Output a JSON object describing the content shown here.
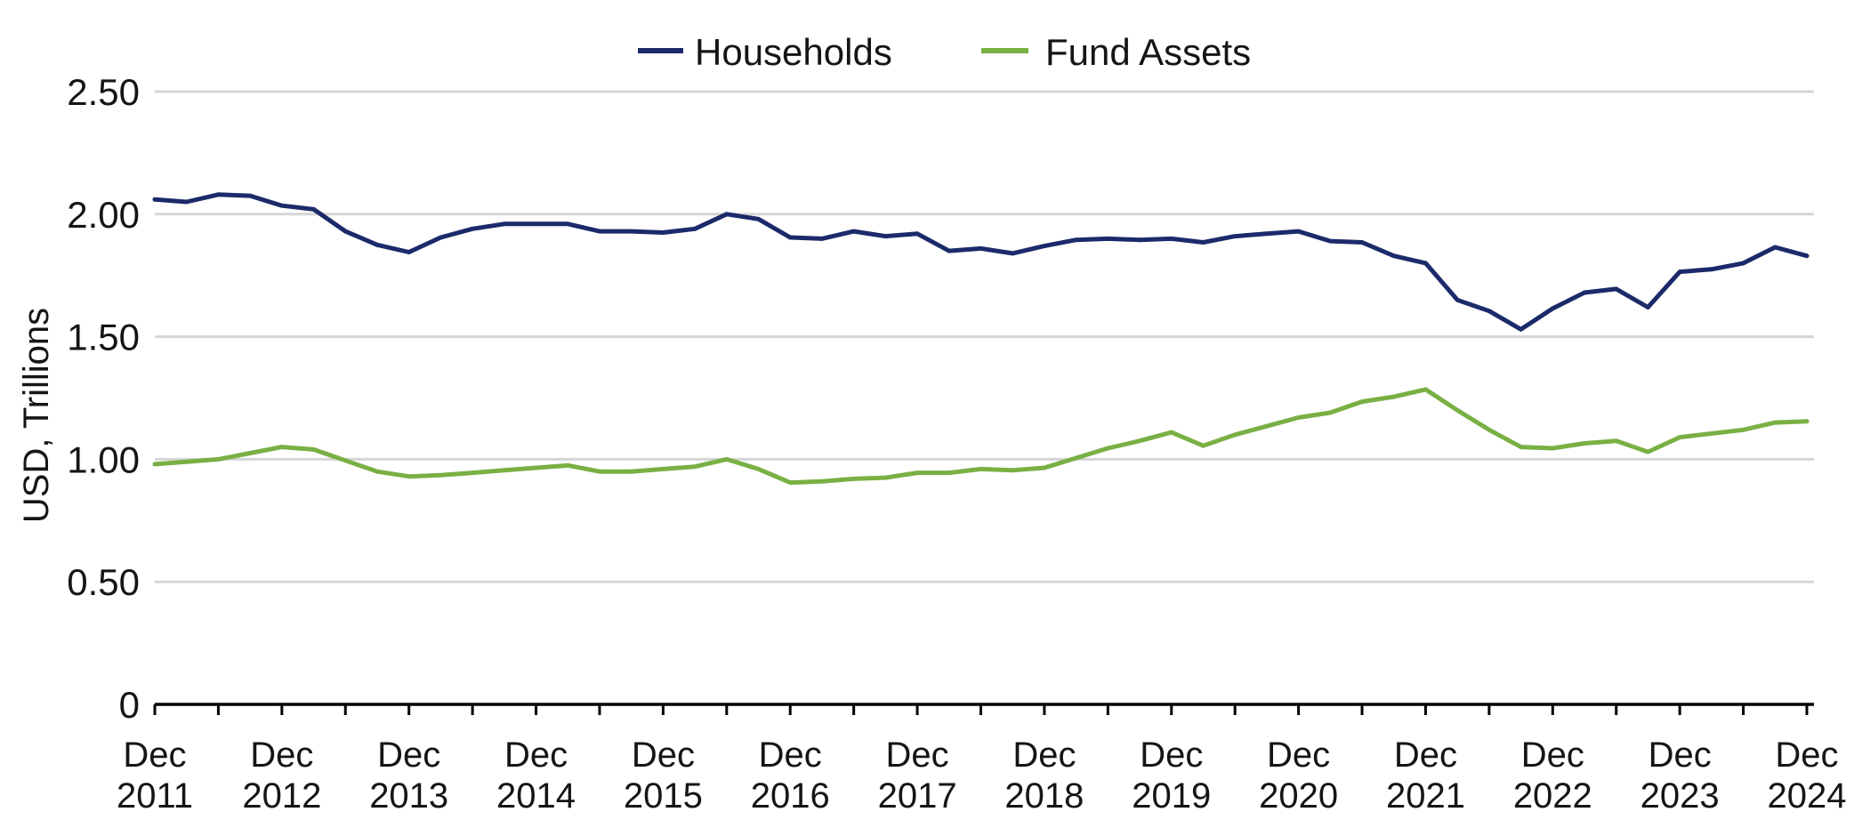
{
  "chart_data": {
    "type": "line",
    "ylabel": "USD, Trillions",
    "ylim": [
      0,
      2.5
    ],
    "yticks": [
      0,
      0.5,
      1.0,
      1.5,
      2.0,
      2.5
    ],
    "ytick_labels": [
      "0",
      "0.50",
      "1.00",
      "1.50",
      "2.00",
      "2.50"
    ],
    "xticks": [
      "2011-12",
      "2012-12",
      "2013-12",
      "2014-12",
      "2015-12",
      "2016-12",
      "2017-12",
      "2018-12",
      "2019-12",
      "2020-12",
      "2021-12",
      "2022-12",
      "2023-12",
      "2024-12"
    ],
    "xtick_labels": [
      {
        "month": "Dec",
        "year": "2011"
      },
      {
        "month": "Dec",
        "year": "2012"
      },
      {
        "month": "Dec",
        "year": "2013"
      },
      {
        "month": "Dec",
        "year": "2014"
      },
      {
        "month": "Dec",
        "year": "2015"
      },
      {
        "month": "Dec",
        "year": "2016"
      },
      {
        "month": "Dec",
        "year": "2017"
      },
      {
        "month": "Dec",
        "year": "2018"
      },
      {
        "month": "Dec",
        "year": "2019"
      },
      {
        "month": "Dec",
        "year": "2020"
      },
      {
        "month": "Dec",
        "year": "2021"
      },
      {
        "month": "Dec",
        "year": "2022"
      },
      {
        "month": "Dec",
        "year": "2023"
      },
      {
        "month": "Dec",
        "year": "2024"
      }
    ],
    "grid": "horizontal",
    "legend": "top-center",
    "x": [
      "2011-12",
      "2012-03",
      "2012-06",
      "2012-09",
      "2012-12",
      "2013-03",
      "2013-06",
      "2013-09",
      "2013-12",
      "2014-03",
      "2014-06",
      "2014-09",
      "2014-12",
      "2015-03",
      "2015-06",
      "2015-09",
      "2015-12",
      "2016-03",
      "2016-06",
      "2016-09",
      "2016-12",
      "2017-03",
      "2017-06",
      "2017-09",
      "2017-12",
      "2018-03",
      "2018-06",
      "2018-09",
      "2018-12",
      "2019-03",
      "2019-06",
      "2019-09",
      "2019-12",
      "2020-03",
      "2020-06",
      "2020-09",
      "2020-12",
      "2021-03",
      "2021-06",
      "2021-09",
      "2021-12",
      "2022-03",
      "2022-06",
      "2022-09",
      "2022-12",
      "2023-03",
      "2023-06",
      "2023-09",
      "2023-12",
      "2024-03",
      "2024-06",
      "2024-09",
      "2024-12"
    ],
    "series": [
      {
        "name": "Households",
        "color": "#1c2a6a",
        "values": [
          2.06,
          2.05,
          2.08,
          2.075,
          2.035,
          2.02,
          1.93,
          1.875,
          1.845,
          1.905,
          1.94,
          1.96,
          1.96,
          1.96,
          1.93,
          1.93,
          1.925,
          1.94,
          2.0,
          1.98,
          1.905,
          1.9,
          1.93,
          1.91,
          1.92,
          1.85,
          1.86,
          1.84,
          1.87,
          1.895,
          1.9,
          1.895,
          1.9,
          1.885,
          1.91,
          1.92,
          1.93,
          1.89,
          1.885,
          1.83,
          1.8,
          1.65,
          1.605,
          1.53,
          1.615,
          1.68,
          1.695,
          1.62,
          1.765,
          1.775,
          1.8,
          1.865,
          1.83
        ]
      },
      {
        "name": "Fund Assets",
        "color": "#79b044",
        "values": [
          0.98,
          0.99,
          1.0,
          1.025,
          1.05,
          1.04,
          0.995,
          0.95,
          0.93,
          0.935,
          0.945,
          0.955,
          0.965,
          0.975,
          0.95,
          0.95,
          0.96,
          0.97,
          1.0,
          0.96,
          0.905,
          0.91,
          0.92,
          0.925,
          0.945,
          0.945,
          0.96,
          0.955,
          0.965,
          1.005,
          1.045,
          1.075,
          1.11,
          1.055,
          1.1,
          1.135,
          1.17,
          1.19,
          1.235,
          1.255,
          1.285,
          1.2,
          1.12,
          1.05,
          1.045,
          1.065,
          1.075,
          1.03,
          1.09,
          1.105,
          1.12,
          1.15,
          1.155
        ]
      }
    ]
  }
}
